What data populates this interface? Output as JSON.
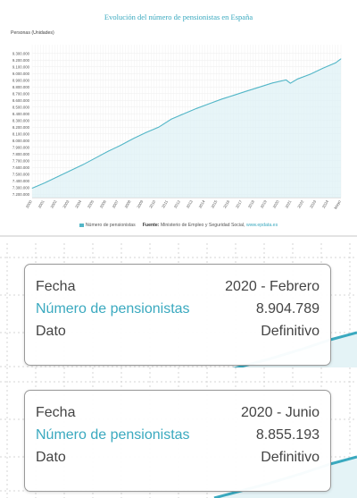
{
  "chart_data": {
    "type": "area",
    "title": "Evolución del número de pensionistas en España",
    "ylabel": "Personas (Unidades)",
    "yticks": [
      "7.200.000",
      "7.300.000",
      "7.400.000",
      "7.500.000",
      "7.600.000",
      "7.700.000",
      "7.800.000",
      "7.900.000",
      "8.000.000",
      "8.100.000",
      "8.200.000",
      "8.300.000",
      "8.400.000",
      "8.500.000",
      "8.600.000",
      "8.700.000",
      "8.800.000",
      "8.900.000",
      "9.000.000",
      "9.100.000",
      "9.200.000",
      "9.300.000"
    ],
    "ylim": [
      7150000,
      9350000
    ],
    "xticks": [
      "2000",
      "2001",
      "2002",
      "2003",
      "2004",
      "2005",
      "2006",
      "2007",
      "2008",
      "2009",
      "2010",
      "2011",
      "2012",
      "2013",
      "2014",
      "2015",
      "2016",
      "2017",
      "2018",
      "2019",
      "2020",
      "2021",
      "2022",
      "2023",
      "2024",
      "Mayo"
    ],
    "series": [
      {
        "name": "Número de pensionistas",
        "color": "#52b6c7",
        "x": [
          2000,
          2001,
          2002,
          2003,
          2004,
          2005,
          2006,
          2007,
          2008,
          2009,
          2010,
          2011,
          2012,
          2013,
          2014,
          2015,
          2016,
          2017,
          2018,
          2019,
          2020.08,
          2020.42,
          2021,
          2022,
          2023,
          2024,
          2024.42
        ],
        "values": [
          7290000,
          7370000,
          7460000,
          7550000,
          7640000,
          7740000,
          7840000,
          7930000,
          8030000,
          8120000,
          8200000,
          8320000,
          8400000,
          8480000,
          8550000,
          8620000,
          8680000,
          8740000,
          8800000,
          8860000,
          8904789,
          8855193,
          8920000,
          8990000,
          9080000,
          9160000,
          9220000
        ]
      }
    ]
  },
  "legend": {
    "series_label": "Número de pensionistas",
    "source_label": "Fuente:",
    "source_text": "Ministerio de Empleo y Seguridad Social,",
    "source_link": "www.epdata.es"
  },
  "tooltips": [
    {
      "row1_label": "Fecha",
      "row1_value": "2020 - Febrero",
      "row2_label": "Número de pensionistas",
      "row2_value": "8.904.789",
      "row3_label": "Dato",
      "row3_value": "Definitivo"
    },
    {
      "row1_label": "Fecha",
      "row1_value": "2020 - Junio",
      "row2_label": "Número de pensionistas",
      "row2_value": "8.855.193",
      "row3_label": "Dato",
      "row3_value": "Definitivo"
    }
  ]
}
